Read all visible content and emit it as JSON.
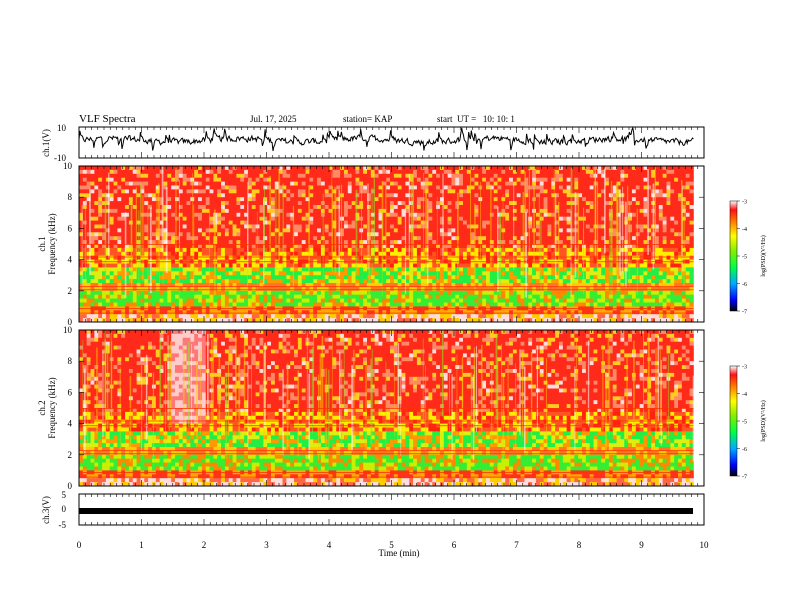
{
  "header": {
    "title": "VLF Spectra",
    "date": "Jul. 17, 2025",
    "station": "station= KAP",
    "start": "start  UT =   10: 10: 1"
  },
  "chart_data": [
    {
      "type": "line",
      "name": "ch1-waveform",
      "ylabel": "ch.1(V)",
      "ylim": [
        -10,
        10
      ],
      "yticks": [
        "10",
        "-10"
      ],
      "x_range_min": [
        0,
        9.83
      ],
      "mean_level": 1.5,
      "amplitude": 4
    },
    {
      "type": "heatmap",
      "name": "ch1-spectrogram",
      "ylabel": "ch.1\nFrequency  (kHz)",
      "ylim": [
        0,
        10
      ],
      "yticks": [
        "0",
        "2",
        "4",
        "6",
        "8",
        "10"
      ],
      "x_range_min": [
        0,
        9.83
      ],
      "colorbar": {
        "label": "log(PSD)(V²/Hz)",
        "range": [
          -7,
          -3
        ],
        "ticks": [
          "-3",
          "-4",
          "-5",
          "-6",
          "-7"
        ]
      }
    },
    {
      "type": "heatmap",
      "name": "ch2-spectrogram",
      "ylabel": "ch.2\nFrequency  (kHz)",
      "ylim": [
        0,
        10
      ],
      "yticks": [
        "0",
        "2",
        "4",
        "6",
        "8",
        "10"
      ],
      "x_range_min": [
        0,
        9.83
      ],
      "colorbar": {
        "label": "log(PSD)(V²/Hz)",
        "range": [
          -7,
          -3
        ],
        "ticks": [
          "-3",
          "-4",
          "-5",
          "-6",
          "-7"
        ]
      }
    },
    {
      "type": "line",
      "name": "ch3-waveform",
      "ylabel": "ch.3(V)",
      "ylim": [
        -5,
        5
      ],
      "yticks": [
        "5",
        "0",
        "-5"
      ],
      "x_range_min": [
        0,
        9.83
      ],
      "mean_level": 0
    }
  ],
  "xaxis": {
    "label": "Time  (min)",
    "ticks": [
      "0",
      "1",
      "2",
      "3",
      "4",
      "5",
      "6",
      "7",
      "8",
      "9",
      "10"
    ],
    "range": [
      0,
      10
    ]
  }
}
